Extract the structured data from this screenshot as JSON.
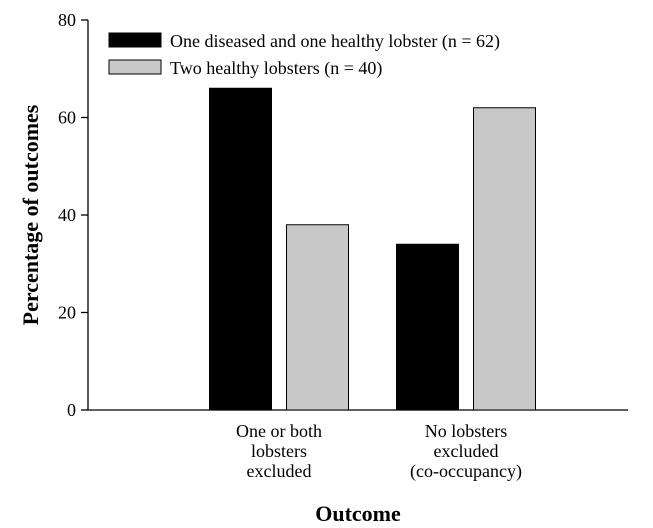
{
  "chart_data": {
    "type": "bar",
    "categories": [
      [
        "One or both",
        "lobsters",
        "excluded"
      ],
      [
        "No lobsters",
        "excluded",
        "(co-occupancy)"
      ]
    ],
    "series": [
      {
        "name": "One diseased and one healthy lobster (n = 62)",
        "values": [
          66,
          34
        ],
        "color": "#000000"
      },
      {
        "name": "Two healthy lobsters (n = 40)",
        "values": [
          38,
          62
        ],
        "color": "#c8c8c8"
      }
    ],
    "xlabel": "Outcome",
    "ylabel": "Percentage of outcomes",
    "ylim": [
      0,
      80
    ],
    "yticks": [
      "0",
      "20",
      "40",
      "60",
      "80"
    ],
    "grid": false,
    "legend": "top-left"
  }
}
